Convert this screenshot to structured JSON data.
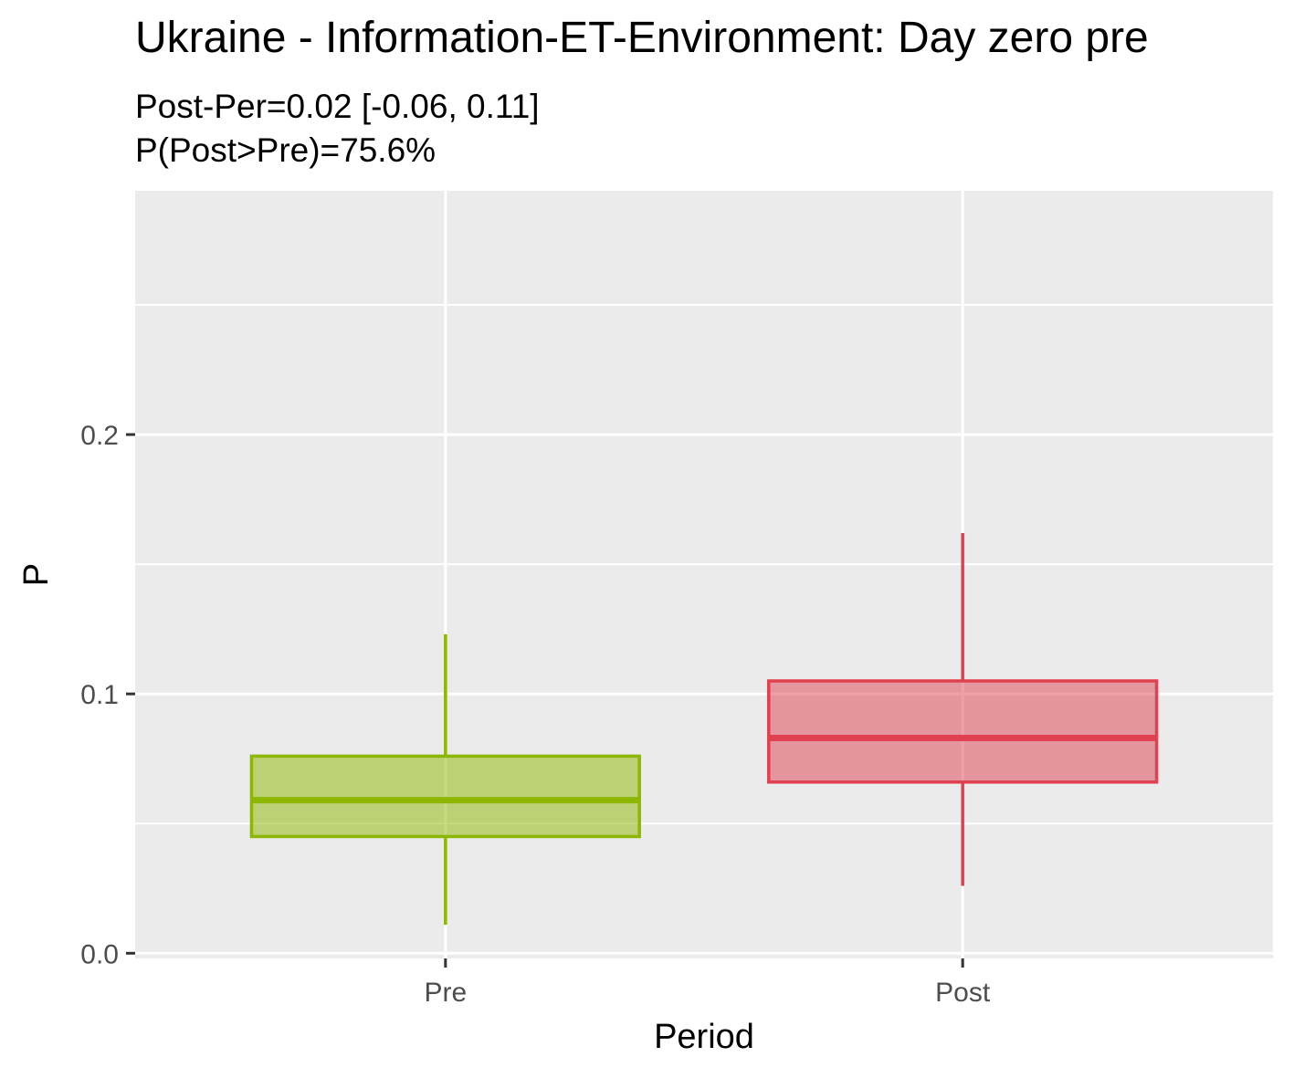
{
  "title": "Ukraine - Information-ET-Environment: Day zero pre",
  "subtitle_line1": "Post-Per=0.02 [-0.06, 0.11]",
  "subtitle_line2": "P(Post>Pre)=75.6%",
  "chart_data": {
    "type": "boxplot",
    "xlabel": "Period",
    "ylabel": "P",
    "categories": [
      "Pre",
      "Post"
    ],
    "ylim": [
      -0.002,
      0.294
    ],
    "y_ticks": [
      0.0,
      0.1,
      0.2
    ],
    "y_tick_labels": [
      "0.0",
      "0.1",
      "0.2"
    ],
    "grid": true,
    "boxes": [
      {
        "category": "Pre",
        "whisker_low": 0.011,
        "q1": 0.045,
        "median": 0.059,
        "q3": 0.076,
        "whisker_high": 0.123,
        "color": "#8db600"
      },
      {
        "category": "Post",
        "whisker_low": 0.026,
        "q1": 0.066,
        "median": 0.083,
        "q3": 0.105,
        "whisker_high": 0.162,
        "color": "#e0404f"
      }
    ]
  },
  "colors": {
    "panel_background": "#ebebeb",
    "grid": "#ffffff",
    "tick_label": "#4d4d4d",
    "axis_tick": "#333333"
  }
}
